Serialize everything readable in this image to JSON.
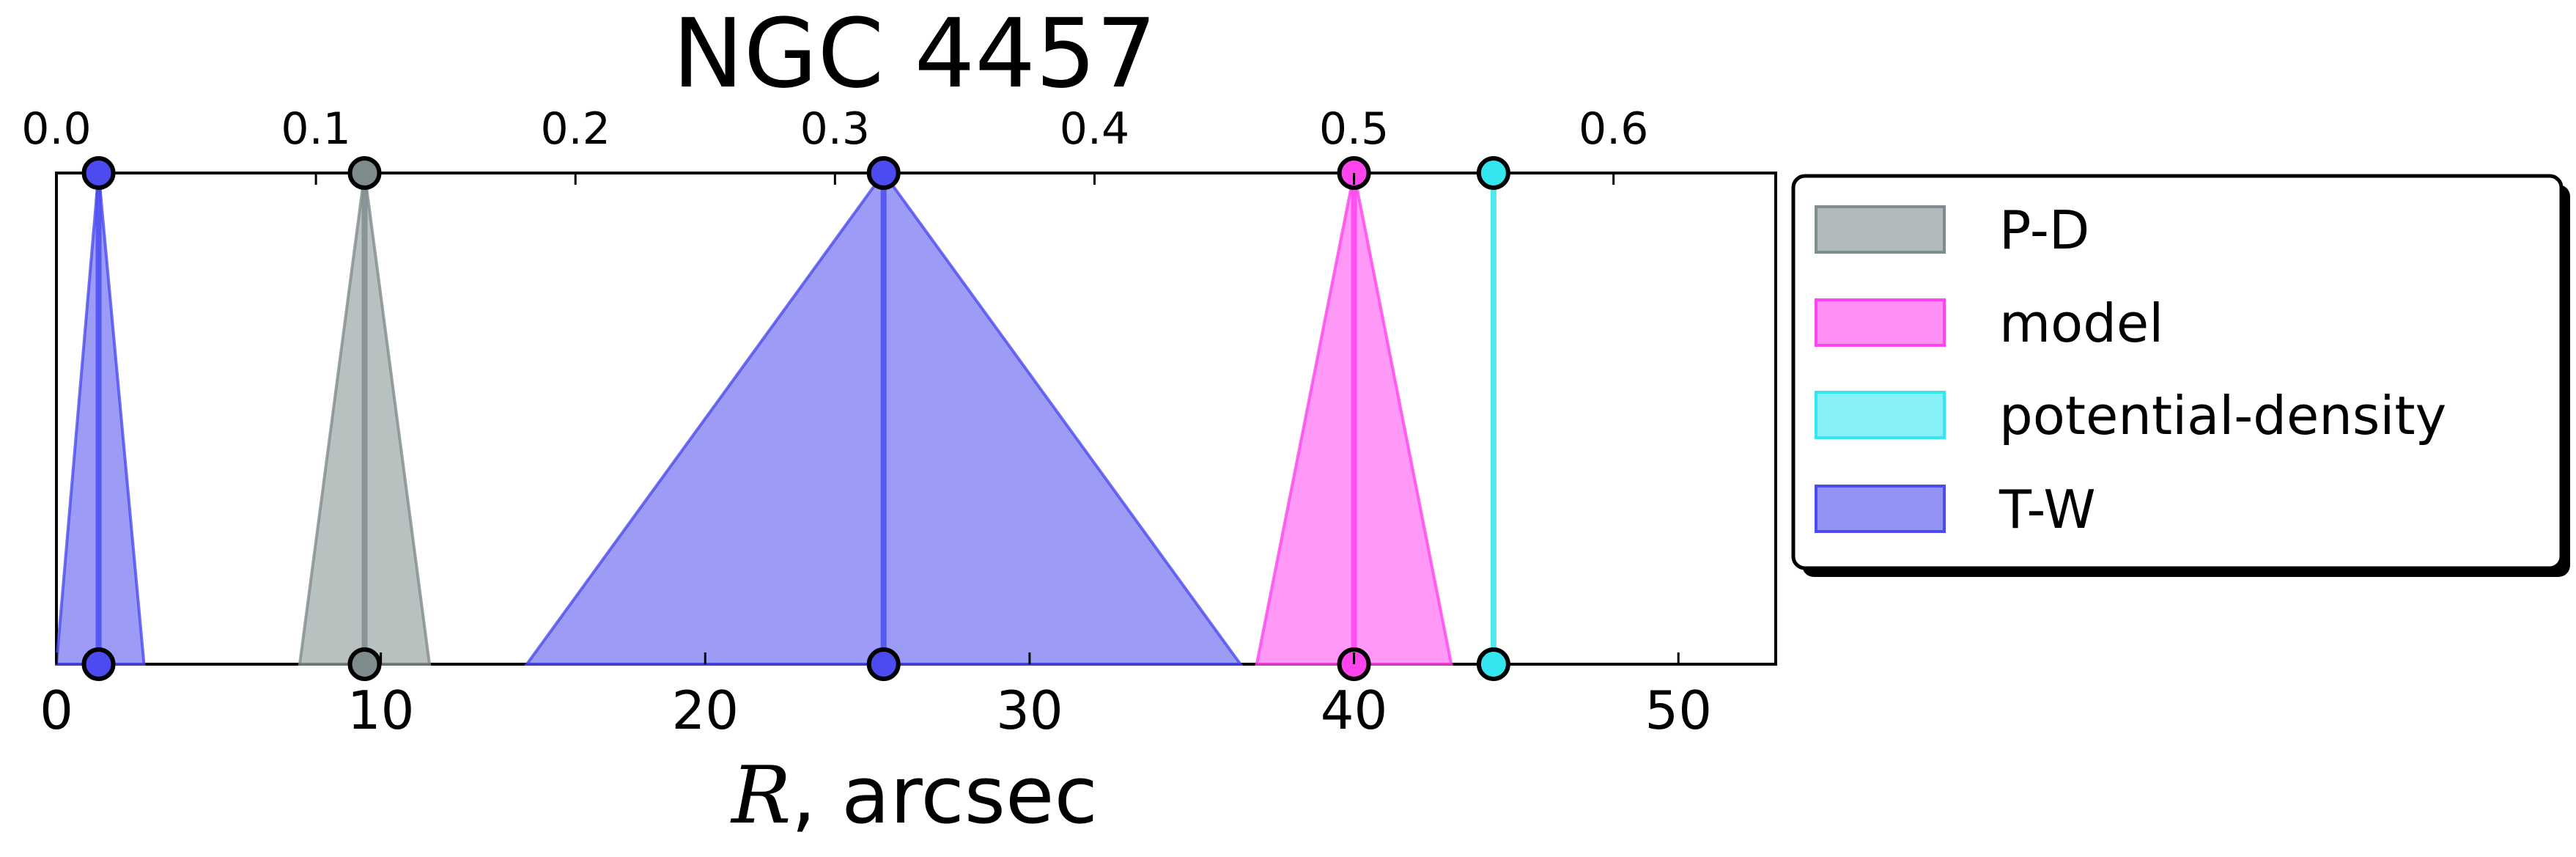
{
  "chart_data": {
    "type": "area",
    "title": "NGC 4457",
    "xlabel_symbol": "R",
    "xlabel_unit": ", arcsec",
    "xlim": [
      0,
      53
    ],
    "xticks": [
      "0",
      "10",
      "20",
      "30",
      "40",
      "50"
    ],
    "top_axis": {
      "ticks": [
        "0.0",
        "0.1",
        "0.2",
        "0.3",
        "0.4",
        "0.5",
        "0.6"
      ],
      "scale_arcsec_per_unit": 80.0
    },
    "grid": false,
    "legend_placement": "outside right",
    "series": [
      {
        "name": "P-D",
        "color": "#7f8c8d",
        "center": 9.5,
        "low": 7.5,
        "high": 11.5
      },
      {
        "name": "model",
        "color": "#ff44ee",
        "center": 40.0,
        "low": 37.0,
        "high": 43.0
      },
      {
        "name": "potential-density",
        "color": "#33e6f0",
        "center": 44.3,
        "low": 44.3,
        "high": 44.3
      },
      {
        "name": "T-W",
        "color": "#4b4bf0",
        "center": 25.5,
        "low": 14.5,
        "high": 36.5
      },
      {
        "name": "T-W",
        "color": "#4b4bf0",
        "center": 1.3,
        "low": 0.0,
        "high": 2.7
      }
    ],
    "legend": [
      {
        "label": "P-D",
        "color": "#7f8c8d"
      },
      {
        "label": "model",
        "color": "#ff44ee"
      },
      {
        "label": "potential-density",
        "color": "#33e6f0"
      },
      {
        "label": "T-W",
        "color": "#4b4bf0"
      }
    ]
  }
}
